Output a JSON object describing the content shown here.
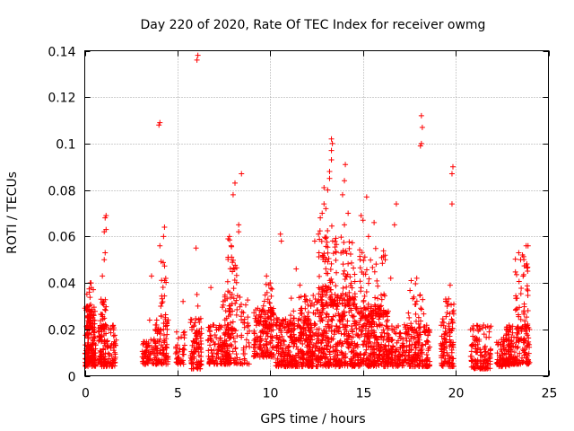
{
  "chart_data": {
    "type": "scatter",
    "title": "Day 220 of 2020, Rate Of TEC Index for receiver owmg",
    "xlabel": "GPS time / hours",
    "ylabel": "ROTI / TECUs",
    "xlim": [
      0,
      25
    ],
    "ylim": [
      0,
      0.14
    ],
    "x_ticks": [
      0,
      5,
      10,
      15,
      20,
      25
    ],
    "y_ticks": [
      0,
      0.02,
      0.04,
      0.06,
      0.08,
      0.1,
      0.12,
      0.14
    ],
    "grid": true,
    "marker": "+",
    "colors": {
      "series": "#ff0000",
      "axis": "#000000",
      "grid": "#a0a0a0"
    },
    "clusters": [
      {
        "x": [
          0.0,
          0.6
        ],
        "y": [
          0.004,
          0.03
        ],
        "n": 160
      },
      {
        "x": [
          0.1,
          0.5
        ],
        "y": [
          0.02,
          0.04
        ],
        "n": 40
      },
      {
        "x": [
          0.7,
          1.7
        ],
        "y": [
          0.004,
          0.022
        ],
        "n": 130
      },
      {
        "x": [
          0.8,
          1.2
        ],
        "y": [
          0.02,
          0.035
        ],
        "n": 30
      },
      {
        "x": [
          3.1,
          3.9
        ],
        "y": [
          0.005,
          0.016
        ],
        "n": 70
      },
      {
        "x": [
          3.8,
          4.5
        ],
        "y": [
          0.005,
          0.025
        ],
        "n": 90
      },
      {
        "x": [
          4.1,
          4.4
        ],
        "y": [
          0.025,
          0.05
        ],
        "n": 18
      },
      {
        "x": [
          4.9,
          5.4
        ],
        "y": [
          0.005,
          0.02
        ],
        "n": 40
      },
      {
        "x": [
          5.7,
          6.3
        ],
        "y": [
          0.003,
          0.025
        ],
        "n": 90
      },
      {
        "x": [
          6.6,
          7.8
        ],
        "y": [
          0.005,
          0.022
        ],
        "n": 120
      },
      {
        "x": [
          7.4,
          8.9
        ],
        "y": [
          0.005,
          0.035
        ],
        "n": 140
      },
      {
        "x": [
          7.7,
          8.2
        ],
        "y": [
          0.035,
          0.06
        ],
        "n": 22
      },
      {
        "x": [
          9.1,
          10.2
        ],
        "y": [
          0.008,
          0.03
        ],
        "n": 150
      },
      {
        "x": [
          9.6,
          10.1
        ],
        "y": [
          0.02,
          0.04
        ],
        "n": 40
      },
      {
        "x": [
          10.3,
          12.2
        ],
        "y": [
          0.004,
          0.025
        ],
        "n": 260
      },
      {
        "x": [
          11.0,
          12.0
        ],
        "y": [
          0.015,
          0.035
        ],
        "n": 60
      },
      {
        "x": [
          12.0,
          14.6
        ],
        "y": [
          0.004,
          0.035
        ],
        "n": 420
      },
      {
        "x": [
          12.6,
          13.6
        ],
        "y": [
          0.03,
          0.065
        ],
        "n": 90
      },
      {
        "x": [
          13.8,
          14.6
        ],
        "y": [
          0.03,
          0.06
        ],
        "n": 50
      },
      {
        "x": [
          14.5,
          16.4
        ],
        "y": [
          0.004,
          0.03
        ],
        "n": 300
      },
      {
        "x": [
          14.8,
          16.2
        ],
        "y": [
          0.025,
          0.055
        ],
        "n": 70
      },
      {
        "x": [
          16.3,
          18.6
        ],
        "y": [
          0.004,
          0.022
        ],
        "n": 280
      },
      {
        "x": [
          17.4,
          18.3
        ],
        "y": [
          0.02,
          0.04
        ],
        "n": 30
      },
      {
        "x": [
          19.2,
          19.9
        ],
        "y": [
          0.004,
          0.025
        ],
        "n": 100
      },
      {
        "x": [
          19.4,
          19.9
        ],
        "y": [
          0.025,
          0.034
        ],
        "n": 15
      },
      {
        "x": [
          20.8,
          21.9
        ],
        "y": [
          0.003,
          0.022
        ],
        "n": 130
      },
      {
        "x": [
          22.2,
          22.9
        ],
        "y": [
          0.004,
          0.017
        ],
        "n": 80
      },
      {
        "x": [
          22.7,
          24.0
        ],
        "y": [
          0.005,
          0.022
        ],
        "n": 160
      },
      {
        "x": [
          23.2,
          23.9
        ],
        "y": [
          0.02,
          0.055
        ],
        "n": 45
      }
    ],
    "points": [
      [
        0.3,
        0.04
      ],
      [
        0.35,
        0.038
      ],
      [
        0.25,
        0.036
      ],
      [
        0.95,
        0.043
      ],
      [
        1.05,
        0.05
      ],
      [
        1.1,
        0.053
      ],
      [
        1.05,
        0.062
      ],
      [
        1.15,
        0.063
      ],
      [
        1.1,
        0.068
      ],
      [
        1.15,
        0.069
      ],
      [
        3.5,
        0.024
      ],
      [
        3.6,
        0.043
      ],
      [
        4.05,
        0.056
      ],
      [
        4.25,
        0.06
      ],
      [
        4.3,
        0.064
      ],
      [
        4.0,
        0.108
      ],
      [
        4.05,
        0.109
      ],
      [
        5.3,
        0.032
      ],
      [
        6.0,
        0.055
      ],
      [
        6.05,
        0.035
      ],
      [
        6.1,
        0.03
      ],
      [
        6.05,
        0.136
      ],
      [
        6.1,
        0.138
      ],
      [
        6.8,
        0.038
      ],
      [
        7.8,
        0.06
      ],
      [
        7.9,
        0.056
      ],
      [
        8.0,
        0.078
      ],
      [
        8.1,
        0.083
      ],
      [
        8.3,
        0.065
      ],
      [
        8.45,
        0.087
      ],
      [
        8.3,
        0.062
      ],
      [
        9.8,
        0.043
      ],
      [
        10.0,
        0.04
      ],
      [
        10.55,
        0.061
      ],
      [
        10.6,
        0.058
      ],
      [
        11.4,
        0.046
      ],
      [
        11.6,
        0.039
      ],
      [
        12.4,
        0.058
      ],
      [
        12.6,
        0.061
      ],
      [
        12.7,
        0.068
      ],
      [
        12.8,
        0.07
      ],
      [
        12.9,
        0.074
      ],
      [
        13.0,
        0.072
      ],
      [
        12.9,
        0.081
      ],
      [
        13.1,
        0.08
      ],
      [
        13.2,
        0.085
      ],
      [
        13.2,
        0.088
      ],
      [
        13.3,
        0.093
      ],
      [
        13.3,
        0.097
      ],
      [
        13.35,
        0.1
      ],
      [
        13.3,
        0.102
      ],
      [
        13.9,
        0.078
      ],
      [
        14.0,
        0.084
      ],
      [
        14.05,
        0.091
      ],
      [
        14.2,
        0.07
      ],
      [
        14.0,
        0.065
      ],
      [
        14.9,
        0.069
      ],
      [
        15.0,
        0.067
      ],
      [
        15.2,
        0.077
      ],
      [
        15.3,
        0.06
      ],
      [
        15.6,
        0.066
      ],
      [
        16.2,
        0.05
      ],
      [
        16.5,
        0.042
      ],
      [
        16.7,
        0.065
      ],
      [
        16.8,
        0.074
      ],
      [
        17.6,
        0.041
      ],
      [
        17.9,
        0.042
      ],
      [
        18.1,
        0.099
      ],
      [
        18.15,
        0.1
      ],
      [
        18.2,
        0.107
      ],
      [
        18.15,
        0.112
      ],
      [
        19.7,
        0.039
      ],
      [
        19.8,
        0.074
      ],
      [
        19.8,
        0.087
      ],
      [
        19.85,
        0.09
      ],
      [
        23.4,
        0.053
      ],
      [
        23.6,
        0.052
      ],
      [
        23.8,
        0.056
      ],
      [
        23.9,
        0.056
      ],
      [
        23.5,
        0.05
      ]
    ]
  }
}
